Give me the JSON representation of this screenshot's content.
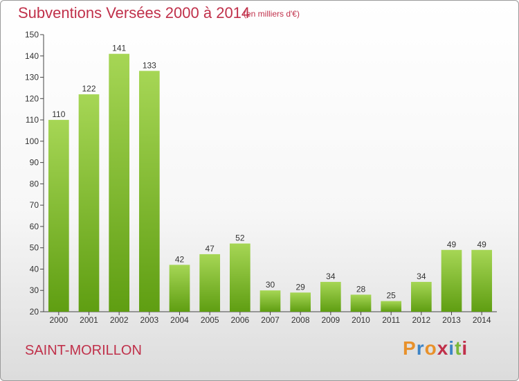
{
  "header": {
    "title": "Subventions Versées 2000 à 2014",
    "unit_note": "(en milliers d'€)"
  },
  "footer": {
    "town": "SAINT-MORILLON",
    "logo_text": "Proxiti"
  },
  "colors": {
    "accent_text": "#c0304a",
    "bar_light": "#a6d655",
    "bar_dark": "#5f9e12",
    "logo_letters": [
      "#e8912b",
      "#3d84c6",
      "#e8912b",
      "#c0304a",
      "#3d84c6",
      "#7ab83a",
      "#c0304a"
    ]
  },
  "chart_data": {
    "type": "bar",
    "title": "Subventions Versées 2000 à 2014",
    "subtitle": "(en milliers d'€)",
    "categories": [
      "2000",
      "2001",
      "2002",
      "2003",
      "2004",
      "2005",
      "2006",
      "2007",
      "2008",
      "2009",
      "2010",
      "2011",
      "2012",
      "2013",
      "2014"
    ],
    "values": [
      110,
      122,
      141,
      133,
      42,
      47,
      52,
      30,
      29,
      34,
      28,
      25,
      34,
      49,
      49
    ],
    "ylim": [
      20,
      150
    ],
    "yticks": [
      20,
      30,
      40,
      50,
      60,
      70,
      80,
      90,
      100,
      110,
      120,
      130,
      140,
      150
    ],
    "grid": false,
    "data_labels": true
  }
}
